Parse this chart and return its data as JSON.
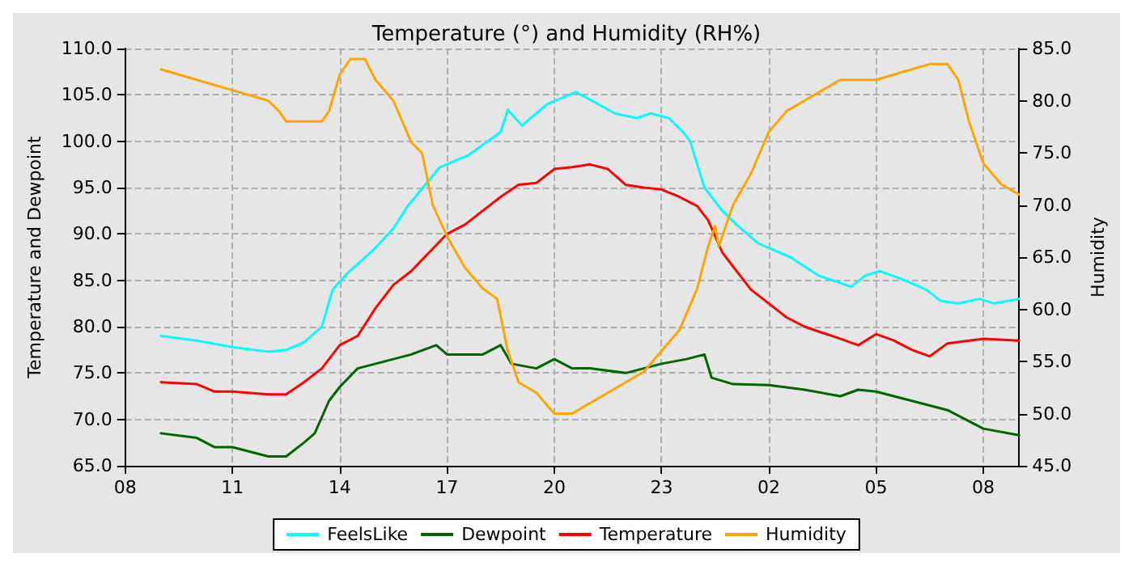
{
  "chart_data": {
    "type": "line",
    "title": "Temperature (°) and Humidity (RH%)",
    "ylabel": "Temperature and Dewpoint",
    "y2label": "Humidity",
    "xlim": [
      "--01-01T08:00",
      "--01-02T09:00"
    ],
    "xticks": [
      {
        "value": "--01-01T08:00",
        "label": "08"
      },
      {
        "value": "--01-01T11:00",
        "label": "11"
      },
      {
        "value": "--01-01T14:00",
        "label": "14"
      },
      {
        "value": "--01-01T17:00",
        "label": "17"
      },
      {
        "value": "--01-01T20:00",
        "label": "20"
      },
      {
        "value": "--01-01T23:00",
        "label": "23"
      },
      {
        "value": "--01-02T02:00",
        "label": "02"
      },
      {
        "value": "--01-02T05:00",
        "label": "05"
      },
      {
        "value": "--01-02T08:00",
        "label": "08"
      }
    ],
    "ylim": [
      65,
      110
    ],
    "yticks": [
      {
        "value": 65,
        "label": "65.0"
      },
      {
        "value": 70,
        "label": "70.0"
      },
      {
        "value": 75,
        "label": "75.0"
      },
      {
        "value": 80,
        "label": "80.0"
      },
      {
        "value": 85,
        "label": "85.0"
      },
      {
        "value": 90,
        "label": "90.0"
      },
      {
        "value": 95,
        "label": "95.0"
      },
      {
        "value": 100,
        "label": "100.0"
      },
      {
        "value": 105,
        "label": "105.0"
      },
      {
        "value": 110,
        "label": "110.0"
      }
    ],
    "y2lim": [
      45,
      85
    ],
    "y2ticks": [
      {
        "value": 45,
        "label": "45.0"
      },
      {
        "value": 50,
        "label": "50.0"
      },
      {
        "value": 55,
        "label": "55.0"
      },
      {
        "value": 60,
        "label": "60.0"
      },
      {
        "value": 65,
        "label": "65.0"
      },
      {
        "value": 70,
        "label": "70.0"
      },
      {
        "value": 75,
        "label": "75.0"
      },
      {
        "value": 80,
        "label": "80.0"
      },
      {
        "value": 85,
        "label": "85.0"
      }
    ],
    "grid": true,
    "legend": "bottom",
    "marker": "none",
    "line_style": "solid",
    "series": [
      {
        "name": "FeelsLike",
        "color": "#00ffff",
        "x": [
          "--01-01T09:00",
          "--01-01T10:00",
          "--01-01T11:00",
          "--01-01T12:00",
          "--01-01T12:30",
          "--01-01T13:00",
          "--01-01T13:30",
          "--01-01T13:48",
          "--01-01T14:12",
          "--01-01T15:00",
          "--01-01T15:30",
          "--01-01T15:54",
          "--01-01T16:48",
          "--01-01T17:36",
          "--01-01T18:30",
          "--01-01T18:42",
          "--01-01T19:06",
          "--01-01T19:48",
          "--01-01T20:36",
          "--01-01T21:00",
          "--01-01T21:42",
          "--01-01T22:18",
          "--01-01T22:42",
          "--01-01T23:12",
          "--01-01T23:36",
          "--01-01T23:48",
          "--01-02T00:00",
          "--01-02T00:12",
          "--01-02T00:42",
          "--01-02T01:06",
          "--01-02T01:42",
          "--01-02T02:36",
          "--01-02T03:24",
          "--01-02T04:18",
          "--01-02T04:42",
          "--01-02T05:06",
          "--01-02T05:48",
          "--01-02T06:24",
          "--01-02T06:48",
          "--01-02T07:18",
          "--01-02T07:54",
          "--01-02T08:18",
          "--01-02T09:00"
        ],
        "values": [
          79,
          78.5,
          77.8,
          77.3,
          77.5,
          78.3,
          80,
          84,
          85.7,
          88.5,
          90.6,
          93,
          97.2,
          98.5,
          101,
          103.4,
          101.7,
          104,
          105.3,
          104.5,
          103,
          102.5,
          103,
          102.5,
          101,
          100,
          97.5,
          95,
          92.5,
          91,
          89,
          87.5,
          85.5,
          84.3,
          85.5,
          86,
          85,
          84,
          82.8,
          82.5,
          83,
          82.5,
          83
        ]
      },
      {
        "name": "Dewpoint",
        "color": "#006400",
        "x": [
          "--01-01T09:00",
          "--01-01T10:00",
          "--01-01T10:30",
          "--01-01T11:00",
          "--01-01T11:30",
          "--01-01T12:00",
          "--01-01T12:30",
          "--01-01T13:00",
          "--01-01T13:18",
          "--01-01T13:42",
          "--01-01T14:00",
          "--01-01T14:30",
          "--01-01T15:00",
          "--01-01T16:00",
          "--01-01T16:42",
          "--01-01T17:00",
          "--01-01T18:00",
          "--01-01T18:30",
          "--01-01T18:48",
          "--01-01T19:30",
          "--01-01T20:00",
          "--01-01T20:30",
          "--01-01T21:00",
          "--01-01T22:00",
          "--01-01T23:00",
          "--01-01T23:42",
          "--01-02T00:12",
          "--01-02T00:24",
          "--01-02T01:00",
          "--01-02T02:00",
          "--01-02T03:00",
          "--01-02T04:00",
          "--01-02T04:30",
          "--01-02T05:00",
          "--01-02T06:00",
          "--01-02T07:00",
          "--01-02T07:30",
          "--01-02T08:00",
          "--01-02T09:00"
        ],
        "values": [
          68.5,
          68,
          67,
          67,
          66.5,
          66,
          66,
          67.5,
          68.5,
          72,
          73.5,
          75.5,
          76,
          77,
          78,
          77,
          77,
          78,
          76,
          75.5,
          76.5,
          75.5,
          75.5,
          75,
          76,
          76.5,
          77,
          74.5,
          73.8,
          73.7,
          73.2,
          72.5,
          73.2,
          73,
          72,
          71,
          70,
          69,
          68.3
        ]
      },
      {
        "name": "Temperature",
        "color": "#ff0000",
        "x": [
          "--01-01T09:00",
          "--01-01T10:00",
          "--01-01T10:30",
          "--01-01T11:00",
          "--01-01T12:00",
          "--01-01T12:30",
          "--01-01T13:00",
          "--01-01T13:30",
          "--01-01T14:00",
          "--01-01T14:30",
          "--01-01T15:00",
          "--01-01T15:30",
          "--01-01T16:00",
          "--01-01T16:30",
          "--01-01T17:00",
          "--01-01T17:30",
          "--01-01T18:00",
          "--01-01T18:30",
          "--01-01T19:00",
          "--01-01T19:30",
          "--01-01T20:00",
          "--01-01T20:30",
          "--01-01T21:00",
          "--01-01T21:30",
          "--01-01T22:00",
          "--01-01T22:30",
          "--01-01T23:00",
          "--01-01T23:30",
          "--01-02T00:00",
          "--01-02T00:18",
          "--01-02T00:42",
          "--01-02T01:00",
          "--01-02T01:30",
          "--01-02T02:00",
          "--01-02T02:30",
          "--01-02T03:00",
          "--01-02T04:00",
          "--01-02T04:30",
          "--01-02T05:00",
          "--01-02T05:30",
          "--01-02T06:00",
          "--01-02T06:30",
          "--01-02T07:00",
          "--01-02T08:00",
          "--01-02T09:00"
        ],
        "values": [
          74,
          73.8,
          73,
          73,
          72.7,
          72.7,
          74,
          75.5,
          78,
          79,
          82,
          84.5,
          86,
          88,
          90,
          91,
          92.5,
          94,
          95.3,
          95.5,
          97,
          97.2,
          97.5,
          97,
          95.3,
          95,
          94.8,
          94,
          93,
          91.5,
          88,
          86.5,
          84,
          82.5,
          81,
          80,
          78.7,
          78,
          79.2,
          78.5,
          77.5,
          76.8,
          78.2,
          78.7,
          78.5
        ]
      },
      {
        "name": "Humidity",
        "color": "#ffa500",
        "axis": "y2",
        "x": [
          "--01-01T09:00",
          "--01-01T10:00",
          "--01-01T11:00",
          "--01-01T12:00",
          "--01-01T12:18",
          "--01-01T12:30",
          "--01-01T13:00",
          "--01-01T13:30",
          "--01-01T13:42",
          "--01-01T14:00",
          "--01-01T14:18",
          "--01-01T14:42",
          "--01-01T15:00",
          "--01-01T15:30",
          "--01-01T16:00",
          "--01-01T16:18",
          "--01-01T16:36",
          "--01-01T17:00",
          "--01-01T17:30",
          "--01-01T18:00",
          "--01-01T18:24",
          "--01-01T18:42",
          "--01-01T19:00",
          "--01-01T19:30",
          "--01-01T20:00",
          "--01-01T20:30",
          "--01-01T21:00",
          "--01-01T21:30",
          "--01-01T22:00",
          "--01-01T22:30",
          "--01-01T23:00",
          "--01-01T23:30",
          "--01-02T00:00",
          "--01-02T00:18",
          "--01-02T00:30",
          "--01-02T00:36",
          "--01-02T01:00",
          "--01-02T01:30",
          "--01-02T02:00",
          "--01-02T02:30",
          "--01-02T03:00",
          "--01-02T03:30",
          "--01-02T04:00",
          "--01-02T05:00",
          "--01-02T06:00",
          "--01-02T06:30",
          "--01-02T07:00",
          "--01-02T07:18",
          "--01-02T07:36",
          "--01-02T08:00",
          "--01-02T08:30",
          "--01-02T09:00"
        ],
        "values": [
          83,
          82,
          81,
          80,
          79,
          78,
          78,
          78,
          79,
          82.5,
          84,
          84,
          82,
          80,
          76,
          75,
          70,
          67,
          64,
          62,
          61,
          56,
          53,
          52,
          50,
          50,
          51,
          52,
          53,
          54,
          56,
          58,
          62,
          66,
          68,
          66,
          70,
          73,
          77,
          79,
          80,
          81,
          82,
          82,
          83,
          83.5,
          83.5,
          82,
          78,
          74,
          72,
          71
        ]
      }
    ]
  }
}
